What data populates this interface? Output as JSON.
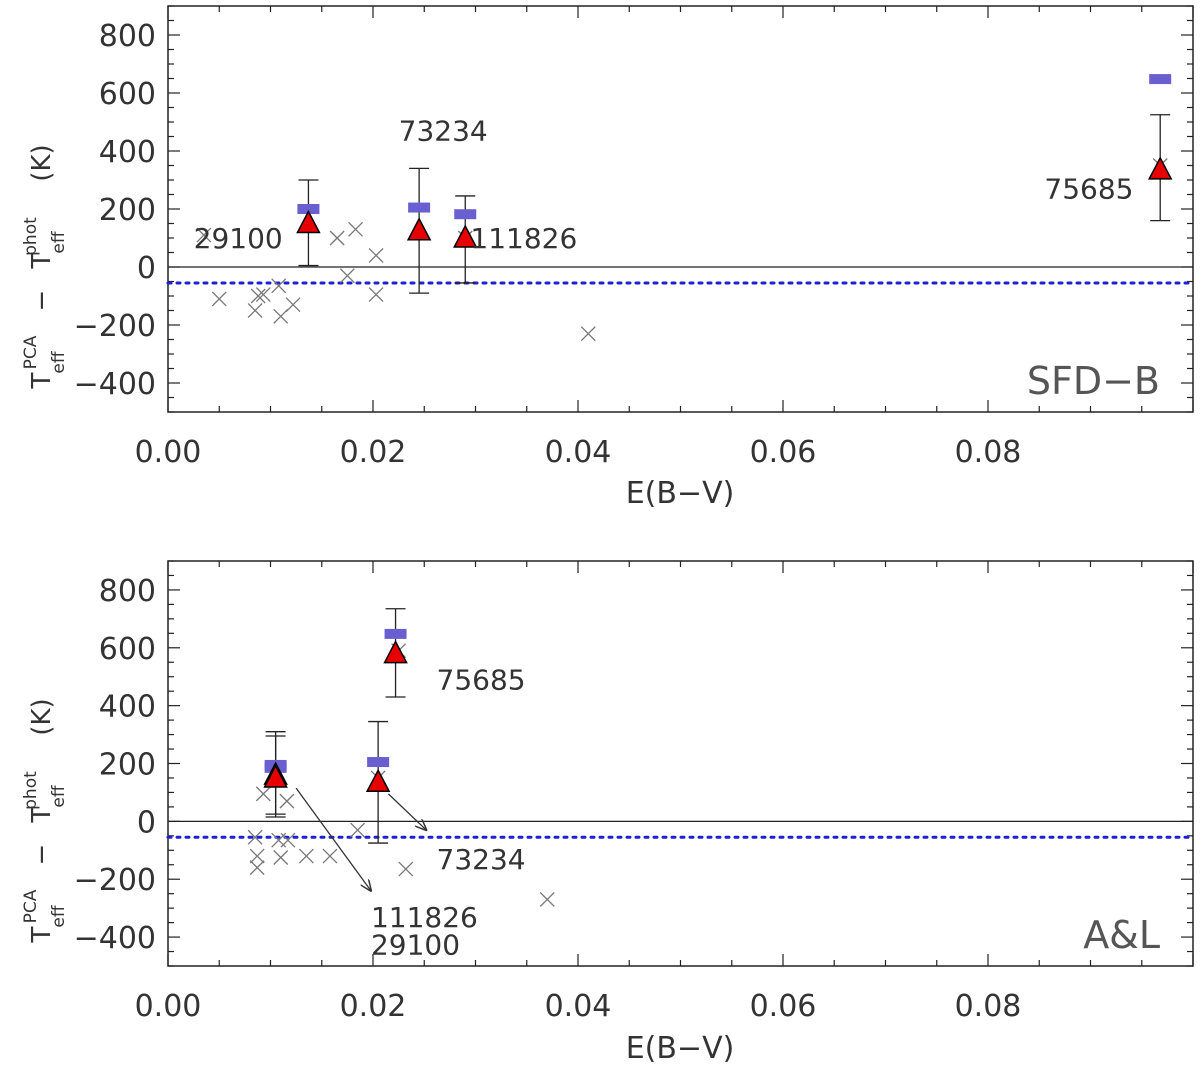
{
  "chart_data": [
    {
      "type": "scatter",
      "panel_label": "SFD−B",
      "xlabel": "E(B−V)",
      "ylabel": {
        "t": "T",
        "eff": "eff",
        "pca": "PCA",
        "minus": "−",
        "phot": "phot",
        "unit": "(K)"
      },
      "xlim": [
        0,
        0.1
      ],
      "ylim": [
        -500,
        900
      ],
      "xticks": [
        "0.00",
        "0.02",
        "0.04",
        "0.06",
        "0.08"
      ],
      "xtick_values": [
        0,
        0.02,
        0.04,
        0.06,
        0.08
      ],
      "yticks": [
        "−400",
        "−200",
        "0",
        "200",
        "400",
        "600",
        "800"
      ],
      "ytick_values": [
        -400,
        -200,
        0,
        200,
        400,
        600,
        800
      ],
      "zero_line": 0,
      "dotted_line": -55,
      "crosses": [
        {
          "x": 0.0035,
          "y": 110
        },
        {
          "x": 0.005,
          "y": -110
        },
        {
          "x": 0.0085,
          "y": -150
        },
        {
          "x": 0.0088,
          "y": -100
        },
        {
          "x": 0.0093,
          "y": -95
        },
        {
          "x": 0.0108,
          "y": -65
        },
        {
          "x": 0.011,
          "y": -170
        },
        {
          "x": 0.0122,
          "y": -130
        },
        {
          "x": 0.0165,
          "y": 100
        },
        {
          "x": 0.0175,
          "y": -30
        },
        {
          "x": 0.0183,
          "y": 130
        },
        {
          "x": 0.0203,
          "y": 40
        },
        {
          "x": 0.0203,
          "y": -95
        },
        {
          "x": 0.041,
          "y": -230
        },
        {
          "x": 0.029,
          "y": 100
        },
        {
          "x": 0.0968,
          "y": 350
        }
      ],
      "triangles": [
        {
          "x": 0.0137,
          "y": 150,
          "yerr_low": 5,
          "yerr_high": 300
        },
        {
          "x": 0.0245,
          "y": 125,
          "yerr_low": -90,
          "yerr_high": 340
        },
        {
          "x": 0.029,
          "y": 100,
          "yerr_low": -55,
          "yerr_high": 245
        },
        {
          "x": 0.0968,
          "y": 335,
          "yerr_low": 160,
          "yerr_high": 525
        }
      ],
      "bars": [
        {
          "x": 0.0137,
          "y": 200
        },
        {
          "x": 0.0245,
          "y": 205
        },
        {
          "x": 0.029,
          "y": 182
        },
        {
          "x": 0.0968,
          "y": 648
        }
      ],
      "annotations": [
        {
          "text": "29100",
          "x": 0.0025,
          "y": 100
        },
        {
          "text": "73234",
          "x": 0.0225,
          "y": 470
        },
        {
          "text": "111826",
          "x": 0.0295,
          "y": 100
        },
        {
          "text": "75685",
          "x": 0.0855,
          "y": 270
        }
      ],
      "arrows": []
    },
    {
      "type": "scatter",
      "panel_label": "A&L",
      "xlabel": "E(B−V)",
      "ylabel": {
        "t": "T",
        "eff": "eff",
        "pca": "PCA",
        "minus": "−",
        "phot": "phot",
        "unit": "(K)"
      },
      "xlim": [
        0,
        0.1
      ],
      "ylim": [
        -500,
        900
      ],
      "xticks": [
        "0.00",
        "0.02",
        "0.04",
        "0.06",
        "0.08"
      ],
      "xtick_values": [
        0,
        0.02,
        0.04,
        0.06,
        0.08
      ],
      "yticks": [
        "−400",
        "−200",
        "0",
        "200",
        "400",
        "600",
        "800"
      ],
      "ytick_values": [
        -400,
        -200,
        0,
        200,
        400,
        600,
        800
      ],
      "zero_line": 0,
      "dotted_line": -55,
      "crosses": [
        {
          "x": 0.0085,
          "y": -55
        },
        {
          "x": 0.0087,
          "y": -120
        },
        {
          "x": 0.0087,
          "y": -160
        },
        {
          "x": 0.0093,
          "y": 95
        },
        {
          "x": 0.0108,
          "y": -65
        },
        {
          "x": 0.011,
          "y": -125
        },
        {
          "x": 0.0116,
          "y": 70
        },
        {
          "x": 0.0117,
          "y": -65
        },
        {
          "x": 0.0135,
          "y": -120
        },
        {
          "x": 0.0158,
          "y": -120
        },
        {
          "x": 0.0185,
          "y": -30
        },
        {
          "x": 0.0225,
          "y": 590
        },
        {
          "x": 0.0205,
          "y": 150
        },
        {
          "x": 0.0232,
          "y": -165
        },
        {
          "x": 0.037,
          "y": -270
        }
      ],
      "triangles": [
        {
          "x": 0.0105,
          "y": 160,
          "yerr_low": 15,
          "yerr_high": 310
        },
        {
          "x": 0.0105,
          "y": 150,
          "yerr_low": 25,
          "yerr_high": 295
        },
        {
          "x": 0.0205,
          "y": 135,
          "yerr_low": -75,
          "yerr_high": 345
        },
        {
          "x": 0.0222,
          "y": 580,
          "yerr_low": 430,
          "yerr_high": 735
        }
      ],
      "bars": [
        {
          "x": 0.0105,
          "y": 195
        },
        {
          "x": 0.0105,
          "y": 185
        },
        {
          "x": 0.0205,
          "y": 205
        },
        {
          "x": 0.0222,
          "y": 648
        }
      ],
      "annotations": [
        {
          "text": "75685",
          "x": 0.0262,
          "y": 490
        },
        {
          "text": "73234",
          "x": 0.0262,
          "y": -130
        },
        {
          "text": "111826",
          "x": 0.0198,
          "y": -330
        },
        {
          "text": "29100",
          "x": 0.0198,
          "y": -425
        }
      ],
      "arrows": [
        {
          "x1": 0.0125,
          "y1": 115,
          "x2": 0.0198,
          "y2": -240
        },
        {
          "x1": 0.0215,
          "y1": 95,
          "x2": 0.0252,
          "y2": -30
        }
      ]
    }
  ]
}
